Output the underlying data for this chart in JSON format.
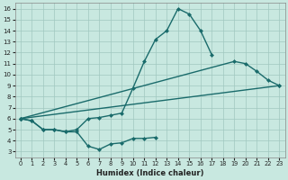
{
  "xlabel": "Humidex (Indice chaleur)",
  "bg_color": "#c8e8e0",
  "line_color": "#1a6b6b",
  "grid_color": "#a0c8c0",
  "xlim": [
    -0.5,
    23.5
  ],
  "ylim": [
    2.5,
    16.5
  ],
  "xticks": [
    0,
    1,
    2,
    3,
    4,
    5,
    6,
    7,
    8,
    9,
    10,
    11,
    12,
    13,
    14,
    15,
    16,
    17,
    18,
    19,
    20,
    21,
    22,
    23
  ],
  "yticks": [
    3,
    4,
    5,
    6,
    7,
    8,
    9,
    10,
    11,
    12,
    13,
    14,
    15,
    16
  ],
  "line_bottom_zigzag": {
    "x": [
      0,
      1,
      2,
      3,
      4,
      5,
      6,
      7,
      8,
      9,
      10,
      11,
      12
    ],
    "y": [
      6.0,
      5.8,
      5.0,
      5.0,
      4.8,
      4.8,
      3.5,
      3.2,
      3.7,
      3.8,
      4.2,
      4.2,
      4.3
    ]
  },
  "line_diagonal": {
    "x": [
      0,
      23
    ],
    "y": [
      6.0,
      9.0
    ]
  },
  "line_peak": {
    "x": [
      0,
      1,
      2,
      3,
      4,
      5,
      6,
      7,
      8,
      9,
      10,
      11,
      12,
      13,
      14,
      15,
      16,
      17
    ],
    "y": [
      6.0,
      5.8,
      5.0,
      5.0,
      4.8,
      5.0,
      6.0,
      6.1,
      6.3,
      6.5,
      8.8,
      11.2,
      13.2,
      14.0,
      16.0,
      15.5,
      14.0,
      11.8
    ]
  },
  "line_right": {
    "x": [
      0,
      19,
      20,
      21,
      22,
      23
    ],
    "y": [
      6.0,
      11.2,
      11.0,
      10.3,
      9.5,
      9.0
    ]
  },
  "ms": 2.5,
  "lw": 1.0
}
